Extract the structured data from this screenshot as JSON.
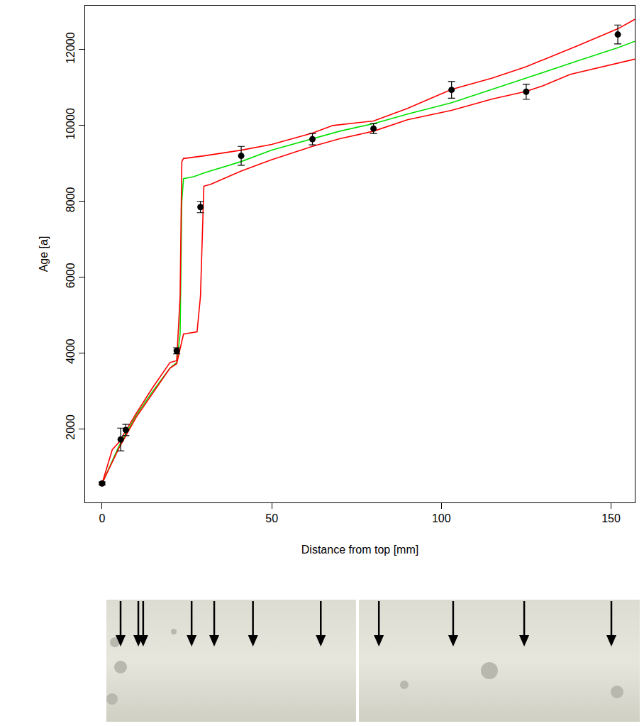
{
  "chart_data": {
    "type": "scatter",
    "x_label": "Distance from top [mm]",
    "y_label": "Age [a]",
    "xlim": [
      -5,
      157
    ],
    "ylim": [
      60,
      13160
    ],
    "xticks": [
      0,
      50,
      100,
      150
    ],
    "yticks": [
      2000,
      4000,
      6000,
      8000,
      10000,
      12000
    ],
    "grid": false,
    "series": [
      {
        "type": "line",
        "color": "#00e000",
        "x": [
          0,
          5,
          10,
          15,
          20,
          22,
          23,
          23.5,
          24,
          27,
          30,
          41,
          50,
          62,
          70,
          80,
          90,
          103,
          115,
          125,
          140,
          152,
          157
        ],
        "values": [
          560,
          1550,
          2350,
          3000,
          3600,
          3750,
          4500,
          8000,
          8600,
          8650,
          8750,
          9050,
          9350,
          9650,
          9850,
          10050,
          10300,
          10600,
          10950,
          11250,
          11700,
          12050,
          12220
        ]
      },
      {
        "type": "line",
        "color": "#ff0000",
        "x": [
          0,
          3,
          5,
          10,
          15,
          20,
          22,
          23,
          23.5,
          24,
          30,
          41,
          50,
          62,
          68,
          80,
          90,
          103,
          115,
          125,
          140,
          152,
          157
        ],
        "values": [
          560,
          1450,
          1650,
          2400,
          3100,
          3750,
          3800,
          5500,
          9050,
          9130,
          9200,
          9350,
          9500,
          9800,
          10000,
          10120,
          10450,
          10950,
          11250,
          11550,
          12100,
          12550,
          12800
        ]
      },
      {
        "type": "line",
        "color": "#ff0000",
        "x": [
          0,
          5,
          10,
          15,
          20,
          22,
          24,
          28,
          29,
          30,
          32,
          41,
          50,
          62,
          70,
          80,
          90,
          103,
          115,
          125,
          130,
          138,
          152,
          157
        ],
        "values": [
          560,
          1500,
          2300,
          2950,
          3600,
          3720,
          4500,
          4560,
          5500,
          8400,
          8450,
          8800,
          9100,
          9450,
          9650,
          9850,
          10150,
          10400,
          10700,
          10900,
          11050,
          11350,
          11650,
          11750
        ]
      },
      {
        "type": "scatter",
        "color": "#000000",
        "marker": "circle",
        "x": [
          0,
          5.5,
          7,
          22,
          29,
          41,
          62,
          80,
          103,
          125,
          152
        ],
        "values": [
          560,
          1720,
          1970,
          4060,
          7850,
          9200,
          9640,
          9920,
          10940,
          10890,
          12400
        ],
        "error": [
          40,
          300,
          150,
          80,
          150,
          250,
          150,
          130,
          220,
          200,
          250
        ]
      }
    ]
  }
}
